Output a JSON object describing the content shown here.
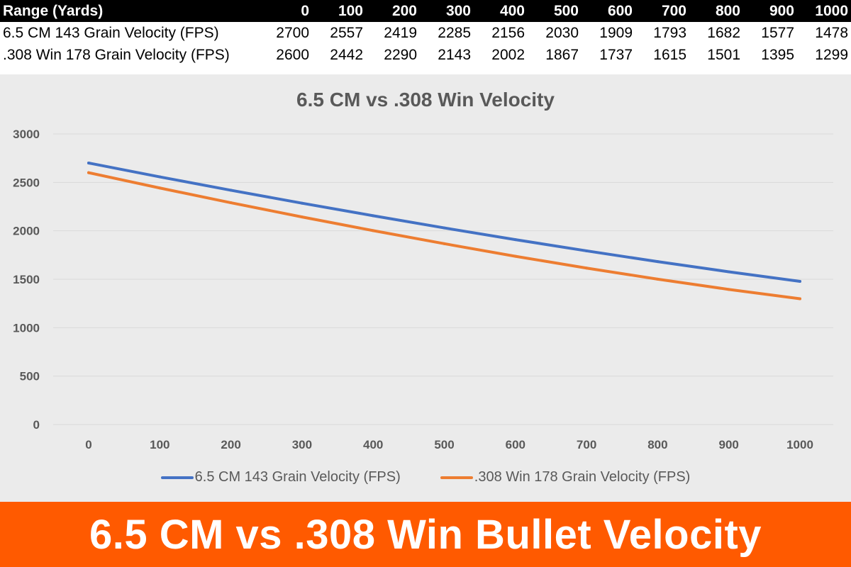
{
  "table": {
    "header_label": "Range (Yards)",
    "ranges": [
      "0",
      "100",
      "200",
      "300",
      "400",
      "500",
      "600",
      "700",
      "800",
      "900",
      "1000"
    ],
    "rows": [
      {
        "label": "6.5 CM 143 Grain Velocity (FPS)",
        "values": [
          "2700",
          "2557",
          "2419",
          "2285",
          "2156",
          "2030",
          "1909",
          "1793",
          "1682",
          "1577",
          "1478"
        ]
      },
      {
        "label": ".308 Win 178 Grain Velocity (FPS)",
        "values": [
          "2600",
          "2442",
          "2290",
          "2143",
          "2002",
          "1867",
          "1737",
          "1615",
          "1501",
          "1395",
          "1299"
        ]
      }
    ]
  },
  "chart_data": {
    "type": "line",
    "title": "6.5 CM vs .308 Win Velocity",
    "xlabel": "",
    "ylabel": "",
    "x": [
      0,
      100,
      200,
      300,
      400,
      500,
      600,
      700,
      800,
      900,
      1000
    ],
    "ylim": [
      0,
      3000
    ],
    "yticks": [
      0,
      500,
      1000,
      1500,
      2000,
      2500,
      3000
    ],
    "grid": true,
    "legend_position": "bottom",
    "series": [
      {
        "name": "6.5 CM 143 Grain Velocity (FPS)",
        "color": "#4472c4",
        "values": [
          2700,
          2557,
          2419,
          2285,
          2156,
          2030,
          1909,
          1793,
          1682,
          1577,
          1478
        ]
      },
      {
        "name": ".308 Win 178 Grain Velocity (FPS)",
        "color": "#ed7d31",
        "values": [
          2600,
          2442,
          2290,
          2143,
          2002,
          1867,
          1737,
          1615,
          1501,
          1395,
          1299
        ]
      }
    ]
  },
  "banner": {
    "text": "6.5 CM vs .308 Win Bullet Velocity"
  },
  "colors": {
    "banner_bg": "#ff5a00",
    "chart_bg": "#ebebeb",
    "grid": "#d9d9d9",
    "axis_text": "#595959"
  }
}
